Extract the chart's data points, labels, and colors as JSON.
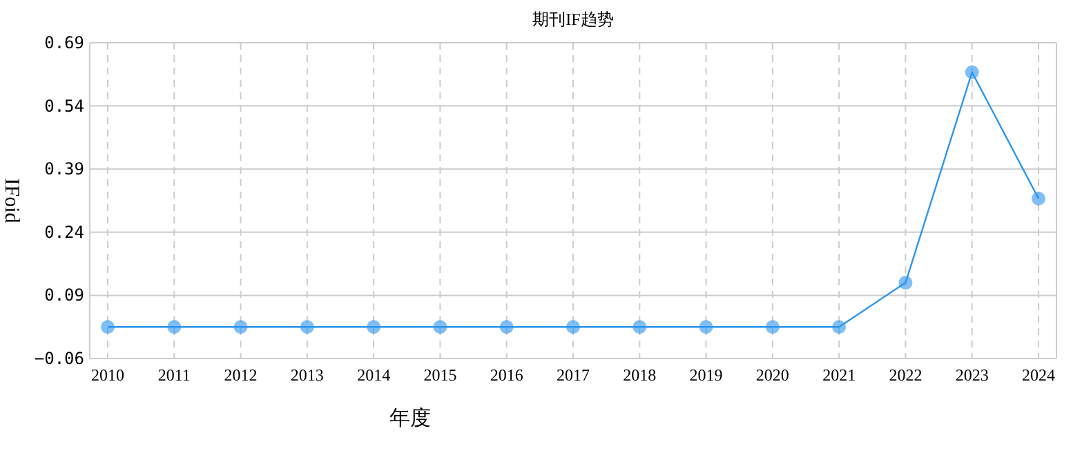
{
  "chart_data": {
    "type": "line",
    "title": "期刊IF趋势",
    "xlabel": "年度",
    "ylabel": "IFoid",
    "categories": [
      "2010",
      "2011",
      "2012",
      "2013",
      "2014",
      "2015",
      "2016",
      "2017",
      "2018",
      "2019",
      "2020",
      "2021",
      "2022",
      "2023",
      "2024"
    ],
    "series": [
      {
        "color": "#2b95ee",
        "values": [
          0.015,
          0.015,
          0.015,
          0.015,
          0.015,
          0.015,
          0.015,
          0.015,
          0.015,
          0.015,
          0.015,
          0.015,
          0.12,
          0.62,
          0.32
        ]
      }
    ],
    "ylim": [
      -0.06,
      0.69
    ],
    "yticks": [
      -0.06,
      0.09,
      0.24,
      0.39,
      0.54,
      0.69
    ],
    "grid": true,
    "marker": "circle",
    "line_style": "solid"
  }
}
